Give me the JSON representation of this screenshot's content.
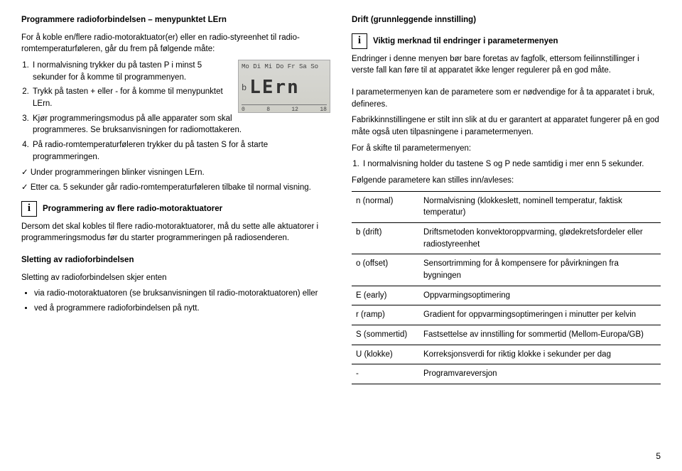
{
  "left": {
    "h1": "Programmere radioforbindelsen – menypunktet LErn",
    "p1": "For å koble en/flere radio-motoraktuator(er) eller en radio-styreenhet til radio-romtemperaturføleren, går du frem på følgende måte:",
    "step1": "I normalvisning trykker du på tasten P i minst 5 sekunder for å komme til programmenyen.",
    "step2": "Trykk på tasten + eller - for å komme til menypunktet LErn.",
    "step3": "Kjør programmeringsmodus på alle apparater som skal programmeres. Se bruksanvisningen for radiomottakeren.",
    "step4": "På radio-romtemperaturføleren trykker du på tasten S for å starte programmeringen.",
    "chk1": "Under programmeringen blinker visningen LErn.",
    "chk2": "Etter ca. 5 sekunder går radio-romtemperaturføleren tilbake til normal visning.",
    "infoA": "Programmering av flere radio-motoraktuatorer",
    "pA": "Dersom det skal kobles til flere radio-motoraktuatorer, må du sette alle aktuatorer i programmeringsmodus før du starter programmeringen på radiosenderen.",
    "h2": "Sletting av radioforbindelsen",
    "p2": "Sletting av radioforbindelsen skjer enten",
    "b1": "via radio-motoraktuatoren (se bruksanvisningen til radio-motoraktuatoren) eller",
    "b2": "ved å programmere radioforbindelsen på nytt.",
    "lcd_days": "Mo Di Mi Do Fr Sa So",
    "lcd_b": "b",
    "lcd_main": "LErn",
    "lcd_scale": [
      "0",
      "8",
      "12",
      "18"
    ]
  },
  "right": {
    "h1": "Drift (grunnleggende innstilling)",
    "infoA": "Viktig merknad til endringer i parametermenyen",
    "pA": "Endringer i denne menyen bør bare foretas av fagfolk, ettersom feilinnstillinger i verste fall kan føre til at apparatet ikke lenger regulerer på en god måte.",
    "pB": "I parametermenyen kan de parametere som er nødvendige for å ta apparatet i bruk, defineres.",
    "pC": "Fabrikkinnstillingene er stilt inn slik at du er garantert at apparatet fungerer på en god måte også uten tilpasningene i parametermenyen.",
    "pD": "For å skifte til parametermenyen:",
    "step1": "I normalvisning holder du tastene S og P nede samtidig i mer enn 5 sekunder.",
    "pE": "Følgende parametere kan stilles inn/avleses:",
    "rows": [
      {
        "k": "n (normal)",
        "v": "Normalvisning (klokkeslett, nominell temperatur, faktisk temperatur)"
      },
      {
        "k": "b (drift)",
        "v": "Driftsmetoden konvektoroppvarming, glødekretsfordeler eller radiostyreenhet"
      },
      {
        "k": "o (offset)",
        "v": "Sensortrimming for å kompensere for påvirkningen fra bygningen"
      },
      {
        "k": "E (early)",
        "v": "Oppvarmingsoptimering"
      },
      {
        "k": "r (ramp)",
        "v": "Gradient for oppvarmingsoptimeringen i minutter per kelvin"
      },
      {
        "k": "S (sommertid)",
        "v": "Fastsettelse av innstilling for sommertid (Mellom-Europa/GB)"
      },
      {
        "k": "U (klokke)",
        "v": "Korreksjonsverdi for riktig klokke i sekunder per dag"
      },
      {
        "k": "-",
        "v": "Programvareversjon"
      }
    ]
  },
  "pagenum": "5"
}
